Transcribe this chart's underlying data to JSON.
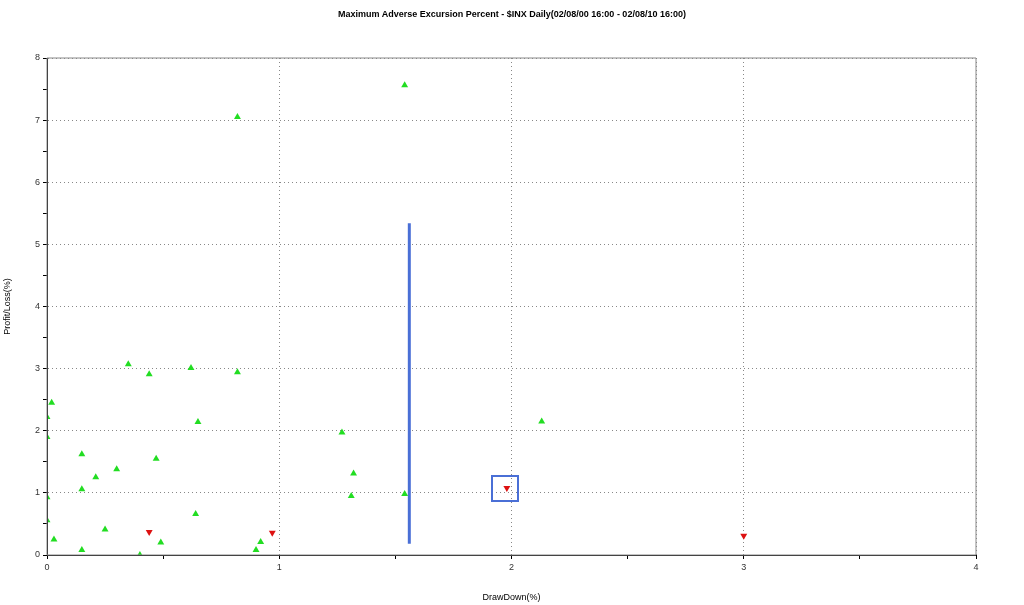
{
  "chart_data": {
    "type": "scatter",
    "title": "Maximum Adverse Excursion Percent - $INX Daily(02/08/00 16:00 - 02/08/10 16:00)",
    "xlabel": "DrawDown(%)",
    "ylabel": "Profit/Loss(%)",
    "xlim": [
      0,
      4
    ],
    "xticks": [
      0,
      {
        "value": 0.5,
        "label": null
      },
      1,
      {
        "value": 1.5,
        "label": null
      },
      2,
      {
        "value": 2.5,
        "label": null
      },
      3,
      {
        "value": 3.5,
        "label": null
      },
      4
    ],
    "ylim": [
      0,
      8
    ],
    "yticks": [
      0,
      {
        "value": 0.5,
        "label": null
      },
      1,
      {
        "value": 1.5,
        "label": null
      },
      2,
      {
        "value": 2.5,
        "label": null
      },
      3,
      {
        "value": 3.5,
        "label": null
      },
      4,
      {
        "value": 4.5,
        "label": null
      },
      5,
      {
        "value": 5.5,
        "label": null
      },
      6,
      {
        "value": 6.5,
        "label": null
      },
      7,
      {
        "value": 7.5,
        "label": null
      },
      8
    ],
    "grid": true,
    "legend": false,
    "series": [
      {
        "color": "#22dd22",
        "marker": "triangle",
        "x": [
          0.35,
          0.44,
          0.62,
          0.82,
          0.02,
          0.0,
          0.0,
          0.65,
          0.15,
          0.47,
          0.3,
          0.21,
          0.15,
          0.0,
          0.0,
          0.64,
          0.25,
          0.03,
          0.49,
          0.15,
          0.4,
          0.9,
          0.92,
          0.82,
          1.54,
          1.27,
          1.32,
          1.31,
          1.54,
          2.13
        ],
        "values": [
          3.07,
          2.91,
          3.01,
          2.94,
          2.45,
          2.22,
          1.9,
          2.14,
          1.62,
          1.55,
          1.38,
          1.25,
          1.06,
          0.93,
          0.56,
          0.66,
          0.41,
          0.25,
          0.2,
          0.08,
          0.0,
          0.08,
          0.21,
          7.05,
          7.56,
          1.97,
          1.31,
          0.95,
          0.98,
          2.15
        ]
      },
      {
        "color": "#dd1111",
        "marker": "triangle-down",
        "x": [
          0.44,
          0.97,
          1.98,
          3.0
        ],
        "values": [
          0.37,
          0.36,
          1.08,
          0.31
        ]
      },
      {
        "type": "line",
        "color": "#4a6fd6",
        "marker": "none",
        "x": [
          1.56,
          1.56
        ],
        "values": [
          0.18,
          5.34
        ]
      }
    ]
  }
}
